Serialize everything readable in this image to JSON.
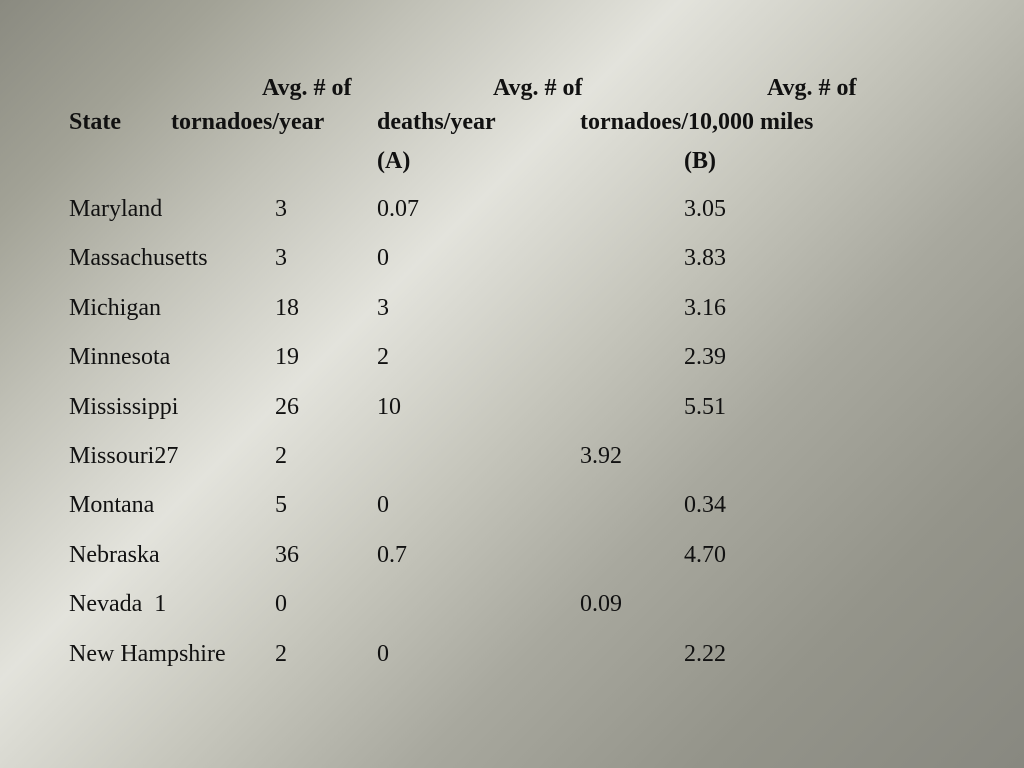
{
  "headers": {
    "avg1": "Avg. # of",
    "avg2": "Avg. # of",
    "avg3": "Avg. # of",
    "state": "State",
    "tornadoes_year": "tornadoes/year",
    "deaths_year": "deaths/year",
    "tornadoes_miles": "tornadoes/10,000 miles",
    "a": "(A)",
    "b": "(B)"
  },
  "rows": [
    {
      "state": "Maryland",
      "tornadoes": "3",
      "deaths": "0.07",
      "mid": "",
      "per_miles": "3.05"
    },
    {
      "state": "Massachusetts",
      "tornadoes": "3",
      "deaths": "0",
      "mid": "",
      "per_miles": "3.83"
    },
    {
      "state": "Michigan",
      "tornadoes": "18",
      "deaths": "3",
      "mid": "",
      "per_miles": "3.16"
    },
    {
      "state": "Minnesota",
      "tornadoes": "19",
      "deaths": "2",
      "mid": "",
      "per_miles": "2.39"
    },
    {
      "state": "Mississippi",
      "tornadoes": "26",
      "deaths": "10",
      "mid": "",
      "per_miles": "5.51"
    },
    {
      "state": "Missouri27",
      "tornadoes": "2",
      "deaths": "",
      "mid": "3.92",
      "per_miles": ""
    },
    {
      "state": "Montana",
      "tornadoes": "5",
      "deaths": "0",
      "mid": "",
      "per_miles": "0.34"
    },
    {
      "state": "Nebraska",
      "tornadoes": "36",
      "deaths": "0.7",
      "mid": "",
      "per_miles": "4.70"
    },
    {
      "state": "Nevada  1",
      "tornadoes": "0",
      "deaths": "",
      "mid": "0.09",
      "per_miles": ""
    },
    {
      "state": "New Hampshire",
      "tornadoes": "2",
      "deaths": "0",
      "mid": "",
      "per_miles": "2.22"
    }
  ]
}
